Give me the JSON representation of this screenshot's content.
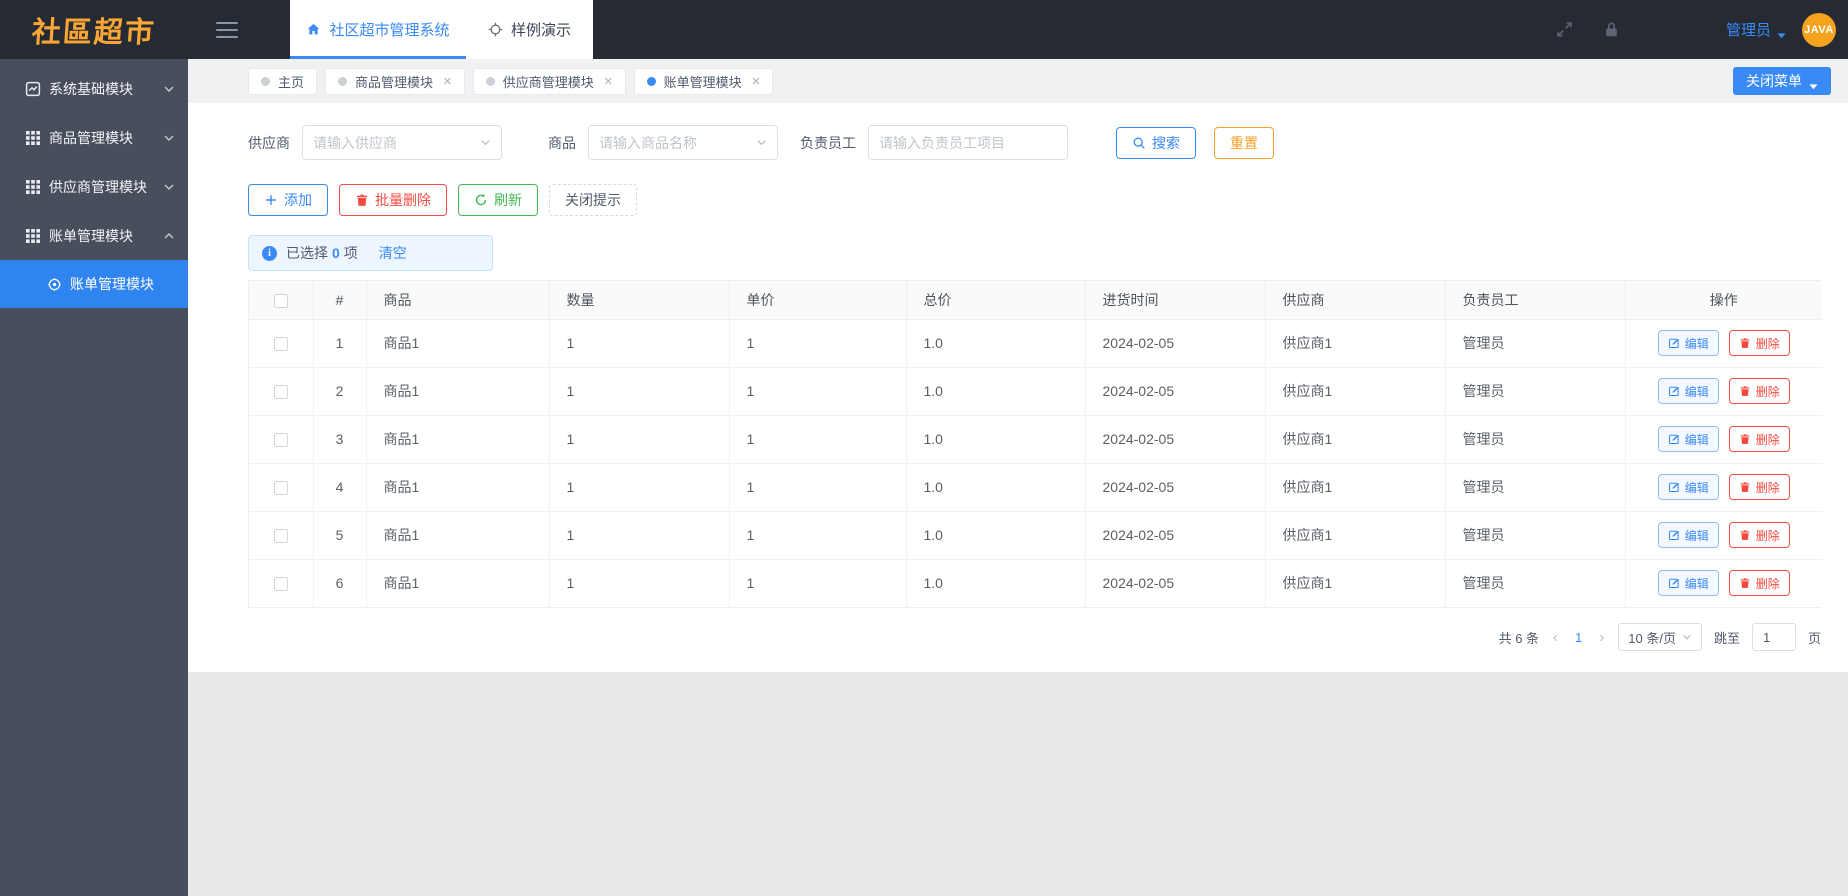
{
  "app": {
    "logo_text": "社區超市",
    "nav_tabs": [
      {
        "label": "社区超市管理系统",
        "icon": "home",
        "active": true
      },
      {
        "label": "样例演示",
        "icon": "aim",
        "active": false
      }
    ],
    "user_label": "管理员",
    "avatar_text": "JAVA"
  },
  "accent_colors": {
    "primary": "#3a8af5",
    "success": "#42b853",
    "warning": "#f7a128",
    "danger": "#f34b42",
    "sidebar_bg": "#484e5c",
    "navbar_bg": "#252a33",
    "active_menu_bg": "#3084f0"
  },
  "sidebar": {
    "items": [
      {
        "label": "系统基础模块",
        "icon": "chart-box",
        "expanded": false
      },
      {
        "label": "商品管理模块",
        "icon": "grid",
        "expanded": false
      },
      {
        "label": "供应商管理模块",
        "icon": "grid",
        "expanded": false
      },
      {
        "label": "账单管理模块",
        "icon": "grid",
        "expanded": true,
        "children": [
          {
            "label": "账单管理模块",
            "icon": "target",
            "active": true
          }
        ]
      }
    ]
  },
  "tagbar": {
    "tags": [
      {
        "label": "主页",
        "closable": false,
        "active": false
      },
      {
        "label": "商品管理模块",
        "closable": true,
        "active": false
      },
      {
        "label": "供应商管理模块",
        "closable": true,
        "active": false
      },
      {
        "label": "账单管理模块",
        "closable": true,
        "active": true
      }
    ],
    "close_menu_label": "关闭菜单"
  },
  "filters": {
    "supplier_label": "供应商",
    "supplier_placeholder": "请输入供应商",
    "product_label": "商品",
    "product_placeholder": "请输入商品名称",
    "employee_label": "负责员工",
    "employee_placeholder": "请输入负责员工项目",
    "search_label": "搜索",
    "reset_label": "重置"
  },
  "toolbar": {
    "add_label": "添加",
    "batch_delete_label": "批量删除",
    "refresh_label": "刷新",
    "close_tip_label": "关闭提示"
  },
  "selection": {
    "prefix": "已选择",
    "count": "0",
    "suffix": "项",
    "clear_label": "清空"
  },
  "table": {
    "headers": [
      "#",
      "商品",
      "数量",
      "单价",
      "总价",
      "进货时间",
      "供应商",
      "负责员工",
      "操作"
    ],
    "edit_label": "编辑",
    "delete_label": "删除",
    "rows": [
      {
        "index": "1",
        "product": "商品1",
        "quantity": "1",
        "price": "1",
        "total": "1.0",
        "date": "2024-02-05",
        "supplier": "供应商1",
        "employee": "管理员"
      },
      {
        "index": "2",
        "product": "商品1",
        "quantity": "1",
        "price": "1",
        "total": "1.0",
        "date": "2024-02-05",
        "supplier": "供应商1",
        "employee": "管理员"
      },
      {
        "index": "3",
        "product": "商品1",
        "quantity": "1",
        "price": "1",
        "total": "1.0",
        "date": "2024-02-05",
        "supplier": "供应商1",
        "employee": "管理员"
      },
      {
        "index": "4",
        "product": "商品1",
        "quantity": "1",
        "price": "1",
        "total": "1.0",
        "date": "2024-02-05",
        "supplier": "供应商1",
        "employee": "管理员"
      },
      {
        "index": "5",
        "product": "商品1",
        "quantity": "1",
        "price": "1",
        "total": "1.0",
        "date": "2024-02-05",
        "supplier": "供应商1",
        "employee": "管理员"
      },
      {
        "index": "6",
        "product": "商品1",
        "quantity": "1",
        "price": "1",
        "total": "1.0",
        "date": "2024-02-05",
        "supplier": "供应商1",
        "employee": "管理员"
      }
    ]
  },
  "pagination": {
    "total_label": "共 6 条",
    "current_page": "1",
    "page_size_label": "10 条/页",
    "jump_label": "跳至",
    "jump_value": "1",
    "page_unit": "页"
  }
}
